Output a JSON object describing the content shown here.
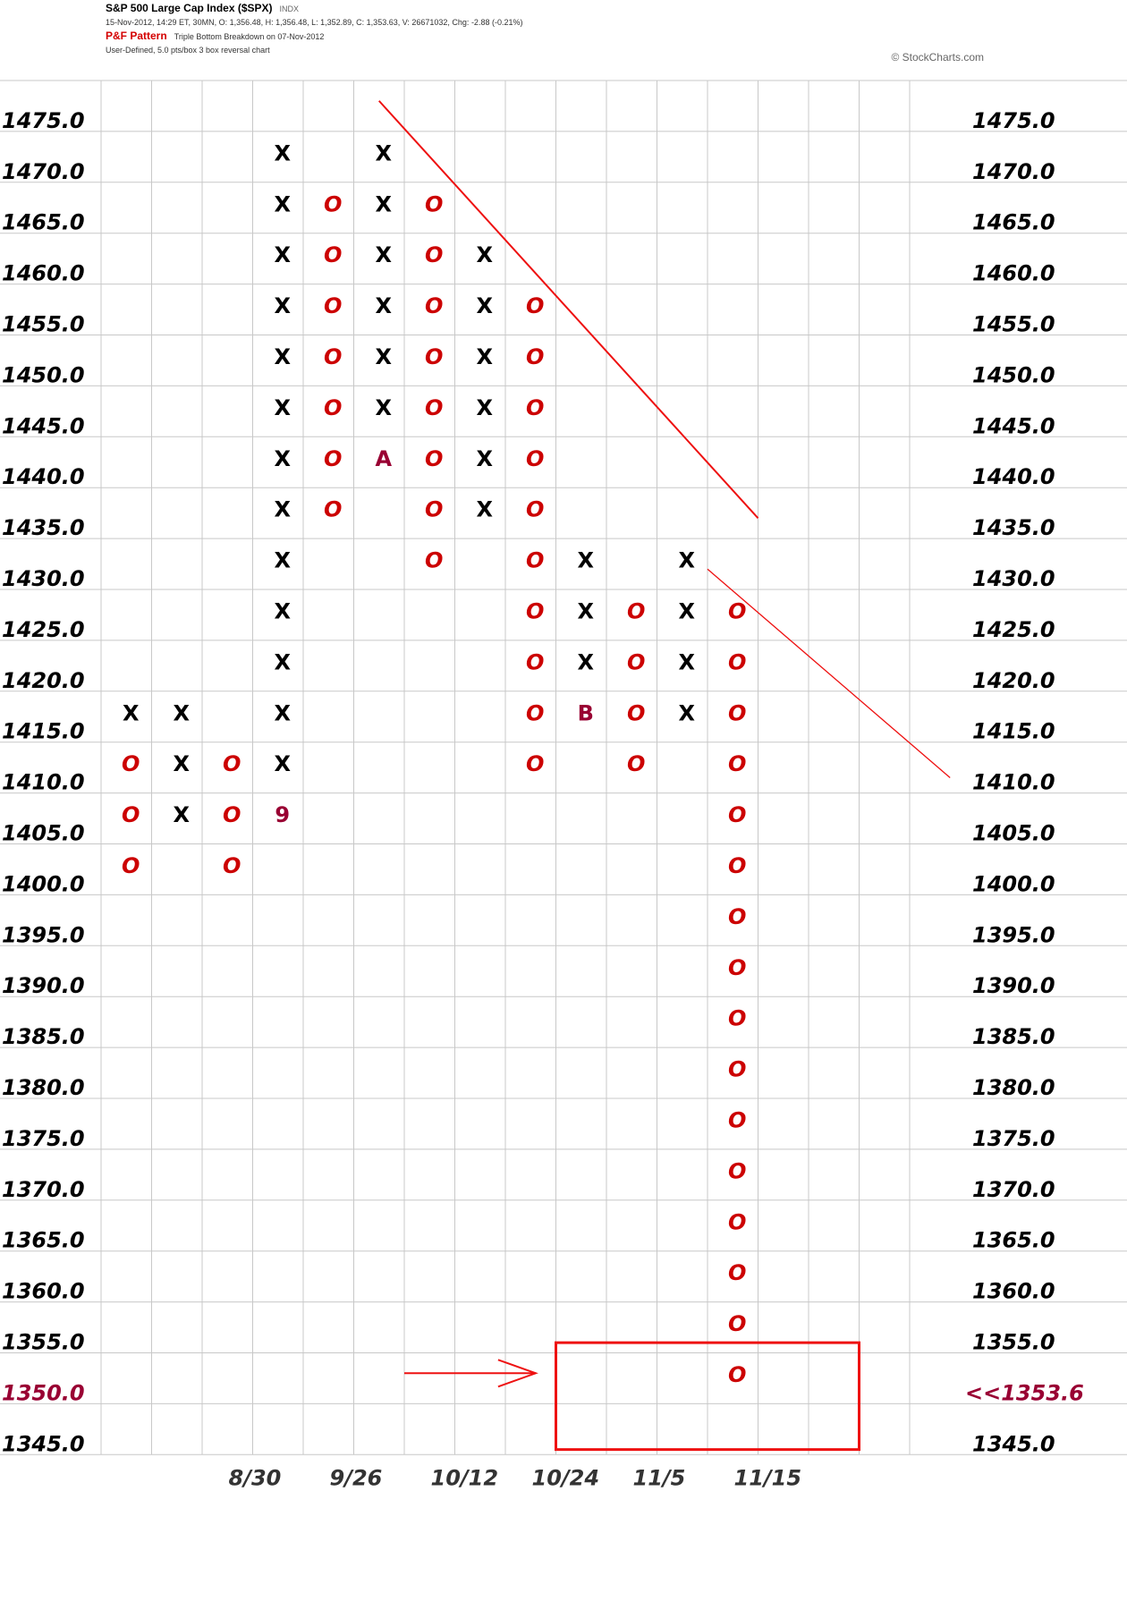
{
  "header": {
    "title": "S&P 500 Large Cap Index ($SPX)",
    "exchange": "INDX",
    "ohlc": "15-Nov-2012, 14:29 ET, 30MN, O: 1,356.48, H: 1,356.48, L: 1,352.89, C: 1,353.63, V: 26671032, Chg: -2.88 (-0.21%)",
    "pattern_label": "P&F Pattern",
    "pattern_text": "Triple Bottom Breakdown on 07-Nov-2012",
    "settings": "User-Defined, 5.0 pts/box 3 box reversal chart",
    "credit": "© StockCharts.com"
  },
  "chart_data": {
    "type": "point-and-figure",
    "box_size": 5.0,
    "reversal": 3,
    "ylim": [
      1345.0,
      1475.0
    ],
    "y_ticks": [
      "1475.0",
      "1470.0",
      "1465.0",
      "1460.0",
      "1455.0",
      "1450.0",
      "1445.0",
      "1440.0",
      "1435.0",
      "1430.0",
      "1425.0",
      "1420.0",
      "1415.0",
      "1410.0",
      "1405.0",
      "1400.0",
      "1395.0",
      "1390.0",
      "1385.0",
      "1380.0",
      "1375.0",
      "1370.0",
      "1365.0",
      "1360.0",
      "1355.0",
      "1350.0",
      "1345.0"
    ],
    "highlighted_left_tick": "1350.0",
    "last_price_label": "<<1353.6",
    "last_price": 1353.6,
    "x_labels": [
      "8/30",
      "9/26",
      "10/12",
      "10/24",
      "11/5",
      "11/15"
    ],
    "colors": {
      "x": "#000000",
      "o": "#cc0000",
      "month_marker": "#990033",
      "annotation": "#ee1111",
      "grid": "#c8c8c8"
    },
    "columns": [
      {
        "index": 1,
        "type": "O",
        "high": 1415,
        "low": 1400,
        "boxes": [
          {
            "price": 1415,
            "mark": "X"
          },
          {
            "price": 1410,
            "mark": "O"
          },
          {
            "price": 1405,
            "mark": "O"
          },
          {
            "price": 1400,
            "mark": "O"
          }
        ]
      },
      {
        "index": 2,
        "type": "X",
        "boxes": [
          {
            "price": 1415,
            "mark": "X"
          },
          {
            "price": 1410,
            "mark": "X"
          },
          {
            "price": 1405,
            "mark": "X"
          }
        ]
      },
      {
        "index": 3,
        "type": "O",
        "boxes": [
          {
            "price": 1410,
            "mark": "O"
          },
          {
            "price": 1405,
            "mark": "O"
          },
          {
            "price": 1400,
            "mark": "O"
          }
        ]
      },
      {
        "index": 4,
        "type": "X",
        "boxes": [
          {
            "price": 1470,
            "mark": "X"
          },
          {
            "price": 1465,
            "mark": "X"
          },
          {
            "price": 1460,
            "mark": "X"
          },
          {
            "price": 1455,
            "mark": "X"
          },
          {
            "price": 1450,
            "mark": "X"
          },
          {
            "price": 1445,
            "mark": "X"
          },
          {
            "price": 1440,
            "mark": "X"
          },
          {
            "price": 1435,
            "mark": "X"
          },
          {
            "price": 1430,
            "mark": "X"
          },
          {
            "price": 1425,
            "mark": "X"
          },
          {
            "price": 1420,
            "mark": "X"
          },
          {
            "price": 1415,
            "mark": "X"
          },
          {
            "price": 1410,
            "mark": "X"
          },
          {
            "price": 1405,
            "mark": "9"
          }
        ]
      },
      {
        "index": 5,
        "type": "O",
        "boxes": [
          {
            "price": 1465,
            "mark": "O"
          },
          {
            "price": 1460,
            "mark": "O"
          },
          {
            "price": 1455,
            "mark": "O"
          },
          {
            "price": 1450,
            "mark": "O"
          },
          {
            "price": 1445,
            "mark": "O"
          },
          {
            "price": 1440,
            "mark": "O"
          },
          {
            "price": 1435,
            "mark": "O"
          }
        ]
      },
      {
        "index": 6,
        "type": "X",
        "boxes": [
          {
            "price": 1470,
            "mark": "X"
          },
          {
            "price": 1465,
            "mark": "X"
          },
          {
            "price": 1460,
            "mark": "X"
          },
          {
            "price": 1455,
            "mark": "X"
          },
          {
            "price": 1450,
            "mark": "X"
          },
          {
            "price": 1445,
            "mark": "X"
          },
          {
            "price": 1440,
            "mark": "A"
          }
        ]
      },
      {
        "index": 7,
        "type": "O",
        "boxes": [
          {
            "price": 1465,
            "mark": "O"
          },
          {
            "price": 1460,
            "mark": "O"
          },
          {
            "price": 1455,
            "mark": "O"
          },
          {
            "price": 1450,
            "mark": "O"
          },
          {
            "price": 1445,
            "mark": "O"
          },
          {
            "price": 1440,
            "mark": "O"
          },
          {
            "price": 1435,
            "mark": "O"
          },
          {
            "price": 1430,
            "mark": "O"
          }
        ]
      },
      {
        "index": 8,
        "type": "X",
        "boxes": [
          {
            "price": 1460,
            "mark": "X"
          },
          {
            "price": 1455,
            "mark": "X"
          },
          {
            "price": 1450,
            "mark": "X"
          },
          {
            "price": 1445,
            "mark": "X"
          },
          {
            "price": 1440,
            "mark": "X"
          },
          {
            "price": 1435,
            "mark": "X"
          }
        ]
      },
      {
        "index": 9,
        "type": "O",
        "boxes": [
          {
            "price": 1455,
            "mark": "O"
          },
          {
            "price": 1450,
            "mark": "O"
          },
          {
            "price": 1445,
            "mark": "O"
          },
          {
            "price": 1440,
            "mark": "O"
          },
          {
            "price": 1435,
            "mark": "O"
          },
          {
            "price": 1430,
            "mark": "O"
          },
          {
            "price": 1425,
            "mark": "O"
          },
          {
            "price": 1420,
            "mark": "O"
          },
          {
            "price": 1415,
            "mark": "O"
          },
          {
            "price": 1410,
            "mark": "O"
          }
        ]
      },
      {
        "index": 10,
        "type": "X",
        "boxes": [
          {
            "price": 1430,
            "mark": "X"
          },
          {
            "price": 1425,
            "mark": "X"
          },
          {
            "price": 1420,
            "mark": "X"
          },
          {
            "price": 1415,
            "mark": "B"
          }
        ]
      },
      {
        "index": 11,
        "type": "O",
        "boxes": [
          {
            "price": 1425,
            "mark": "O"
          },
          {
            "price": 1420,
            "mark": "O"
          },
          {
            "price": 1415,
            "mark": "O"
          },
          {
            "price": 1410,
            "mark": "O"
          }
        ]
      },
      {
        "index": 12,
        "type": "X",
        "boxes": [
          {
            "price": 1430,
            "mark": "X"
          },
          {
            "price": 1425,
            "mark": "X"
          },
          {
            "price": 1420,
            "mark": "X"
          },
          {
            "price": 1415,
            "mark": "X"
          }
        ]
      },
      {
        "index": 13,
        "type": "O",
        "boxes": [
          {
            "price": 1425,
            "mark": "O"
          },
          {
            "price": 1420,
            "mark": "O"
          },
          {
            "price": 1415,
            "mark": "O"
          },
          {
            "price": 1410,
            "mark": "O"
          },
          {
            "price": 1405,
            "mark": "O"
          },
          {
            "price": 1400,
            "mark": "O"
          },
          {
            "price": 1395,
            "mark": "O"
          },
          {
            "price": 1390,
            "mark": "O"
          },
          {
            "price": 1385,
            "mark": "O"
          },
          {
            "price": 1380,
            "mark": "O"
          },
          {
            "price": 1375,
            "mark": "O"
          },
          {
            "price": 1370,
            "mark": "O"
          },
          {
            "price": 1365,
            "mark": "O"
          },
          {
            "price": 1360,
            "mark": "O"
          },
          {
            "price": 1355,
            "mark": "O"
          },
          {
            "price": 1350,
            "mark": "O"
          }
        ]
      }
    ],
    "annotations": [
      {
        "type": "trendline",
        "from": {
          "column": 6.5,
          "price": 1478
        },
        "to": {
          "column": 14,
          "price": 1437
        }
      },
      {
        "type": "trendline",
        "from": {
          "column": 13,
          "price": 1432
        },
        "to": {
          "column": 17.8,
          "price": 1411.5
        }
      },
      {
        "type": "arrow",
        "from": {
          "column": 7,
          "price": 1353
        },
        "to": {
          "column": 9.6,
          "price": 1353
        }
      },
      {
        "type": "box",
        "from": {
          "column": 10,
          "price": 1356
        },
        "to": {
          "column": 16,
          "price": 1345.5
        }
      }
    ]
  }
}
